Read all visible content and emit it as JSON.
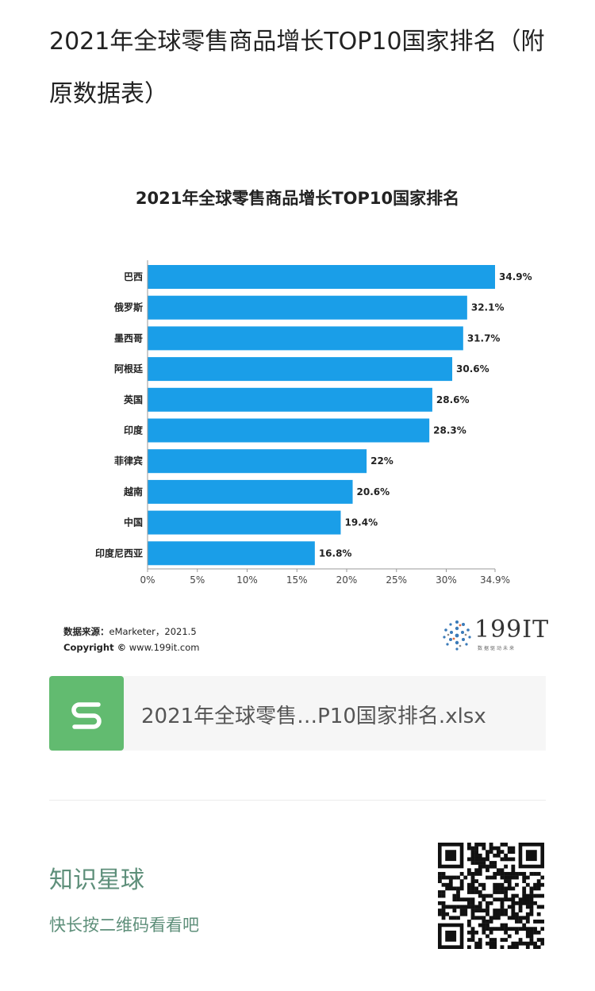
{
  "post": {
    "title": "2021年全球零售商品增长TOP10国家排名（附原数据表）"
  },
  "chart_data": {
    "type": "bar",
    "orientation": "horizontal",
    "title": "2021年全球零售商品增长TOP10国家排名",
    "categories": [
      "巴西",
      "俄罗斯",
      "墨西哥",
      "阿根廷",
      "英国",
      "印度",
      "菲律宾",
      "越南",
      "中国",
      "印度尼西亚"
    ],
    "values": [
      34.9,
      32.1,
      31.7,
      30.6,
      28.6,
      28.3,
      22,
      20.6,
      19.4,
      16.8
    ],
    "data_labels": [
      "34.9%",
      "32.1%",
      "31.7%",
      "30.6%",
      "28.6%",
      "28.3%",
      "22%",
      "20.6%",
      "19.4%",
      "16.8%"
    ],
    "x_ticks": [
      "0%",
      "5%",
      "10%",
      "15%",
      "20%",
      "25%",
      "30%",
      "34.9%"
    ],
    "x_tick_values": [
      0,
      5,
      10,
      15,
      20,
      25,
      30,
      34.9
    ],
    "xlim": [
      0,
      34.9
    ],
    "bar_color": "#1a9ee8",
    "grid": false
  },
  "source": {
    "label": "数据来源：",
    "value": "eMarketer，2021.5",
    "copyright_label": "Copyright ©",
    "copyright_value": "www.199it.com"
  },
  "logo": {
    "text": "199IT",
    "subtitle": "数据驱动未来"
  },
  "file": {
    "name": "2021年全球零售…P10国家排名.xlsx",
    "icon": "spreadsheet-s-icon",
    "icon_color": "#62bb70"
  },
  "footer": {
    "title": "知识星球",
    "subtitle": "快长按二维码看看吧",
    "qr_icon": "qr-code-icon",
    "accent_color": "#5e8f7a"
  }
}
